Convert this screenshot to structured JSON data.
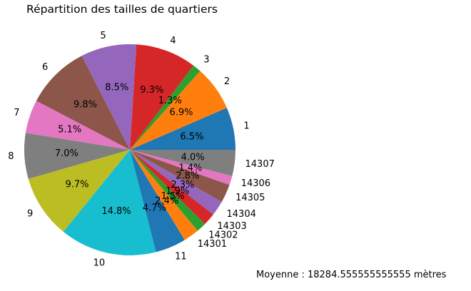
{
  "chart_data": {
    "type": "pie",
    "title": "Répartition des tailles de quartiers",
    "start_angle_deg": 0,
    "direction": "counterclockwise",
    "slices": [
      {
        "label": "1",
        "pct": "6.5%",
        "value": 6.5,
        "color": "#1f77b4"
      },
      {
        "label": "2",
        "pct": "6.9%",
        "value": 6.9,
        "color": "#ff7f0e"
      },
      {
        "label": "3",
        "pct": "1.3%",
        "value": 1.3,
        "color": "#2ca02c"
      },
      {
        "label": "4",
        "pct": "9.3%",
        "value": 9.3,
        "color": "#d62728"
      },
      {
        "label": "5",
        "pct": "8.5%",
        "value": 8.5,
        "color": "#9467bd"
      },
      {
        "label": "6",
        "pct": "9.8%",
        "value": 9.8,
        "color": "#8c564b"
      },
      {
        "label": "7",
        "pct": "5.1%",
        "value": 5.1,
        "color": "#e377c2"
      },
      {
        "label": "8",
        "pct": "7.0%",
        "value": 7.0,
        "color": "#7f7f7f"
      },
      {
        "label": "9",
        "pct": "9.7%",
        "value": 9.7,
        "color": "#bcbd22"
      },
      {
        "label": "10",
        "pct": "14.8%",
        "value": 14.8,
        "color": "#17becf"
      },
      {
        "label": "11",
        "pct": "4.7%",
        "value": 4.7,
        "color": "#1f77b4"
      },
      {
        "label": "14301",
        "pct": "2.4%",
        "value": 2.4,
        "color": "#ff7f0e"
      },
      {
        "label": "14302",
        "pct": "1.5%",
        "value": 1.5,
        "color": "#2ca02c"
      },
      {
        "label": "14303",
        "pct": "1.9%",
        "value": 1.9,
        "color": "#d62728"
      },
      {
        "label": "14304",
        "pct": "2.3%",
        "value": 2.3,
        "color": "#9467bd"
      },
      {
        "label": "14305",
        "pct": "2.8%",
        "value": 2.8,
        "color": "#8c564b"
      },
      {
        "label": "14306",
        "pct": "1.4%",
        "value": 1.4,
        "color": "#e377c2"
      },
      {
        "label": "14307",
        "pct": "4.0%",
        "value": 4.0,
        "color": "#7f7f7f"
      }
    ]
  },
  "footer": {
    "text": "Moyenne : 18284.555555555555 mètres"
  }
}
